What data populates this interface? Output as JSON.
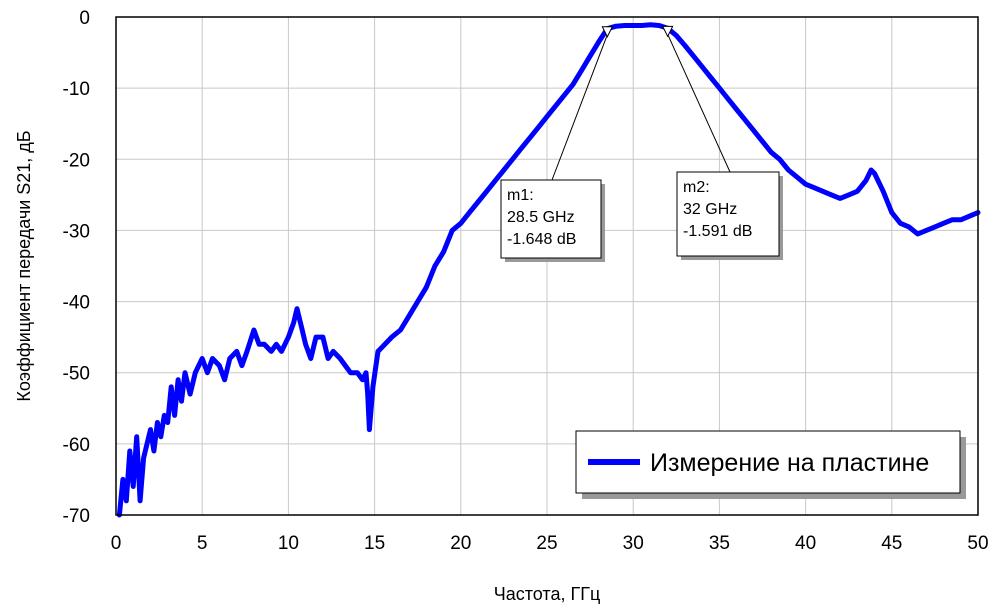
{
  "chart_data": {
    "type": "line",
    "title": "",
    "xlabel": "Частота, ГГц",
    "ylabel": "Коэффициент передачи S21, дБ",
    "xlim": [
      0,
      50
    ],
    "ylim": [
      -70,
      0
    ],
    "xticks": [
      0,
      5,
      10,
      15,
      20,
      25,
      30,
      35,
      40,
      45,
      50
    ],
    "yticks": [
      0,
      -10,
      -20,
      -30,
      -40,
      -50,
      -60,
      -70
    ],
    "grid": true,
    "legend_position": "bottom-right",
    "series": [
      {
        "name": "Измерение на пластине",
        "color": "#0000ff",
        "points": [
          [
            0.2,
            -70
          ],
          [
            0.4,
            -65
          ],
          [
            0.6,
            -68
          ],
          [
            0.8,
            -61
          ],
          [
            1.0,
            -66
          ],
          [
            1.2,
            -59
          ],
          [
            1.4,
            -68
          ],
          [
            1.6,
            -62
          ],
          [
            1.8,
            -60
          ],
          [
            2.0,
            -58
          ],
          [
            2.2,
            -61
          ],
          [
            2.4,
            -57
          ],
          [
            2.6,
            -59
          ],
          [
            2.8,
            -56
          ],
          [
            3.0,
            -57
          ],
          [
            3.2,
            -52
          ],
          [
            3.4,
            -56
          ],
          [
            3.6,
            -51
          ],
          [
            3.8,
            -54
          ],
          [
            4.0,
            -50
          ],
          [
            4.3,
            -53
          ],
          [
            4.6,
            -50
          ],
          [
            5.0,
            -48
          ],
          [
            5.3,
            -50
          ],
          [
            5.6,
            -48
          ],
          [
            6.0,
            -49
          ],
          [
            6.3,
            -51
          ],
          [
            6.6,
            -48
          ],
          [
            7.0,
            -47
          ],
          [
            7.3,
            -49
          ],
          [
            7.6,
            -47
          ],
          [
            8.0,
            -44
          ],
          [
            8.3,
            -46
          ],
          [
            8.6,
            -46
          ],
          [
            9.0,
            -47
          ],
          [
            9.3,
            -46
          ],
          [
            9.6,
            -47
          ],
          [
            10.0,
            -45
          ],
          [
            10.3,
            -43
          ],
          [
            10.5,
            -41
          ],
          [
            10.8,
            -44
          ],
          [
            11.0,
            -46
          ],
          [
            11.3,
            -48
          ],
          [
            11.6,
            -45
          ],
          [
            12.0,
            -45
          ],
          [
            12.3,
            -48
          ],
          [
            12.6,
            -47
          ],
          [
            13.0,
            -48
          ],
          [
            13.3,
            -49
          ],
          [
            13.6,
            -50
          ],
          [
            14.0,
            -50
          ],
          [
            14.3,
            -51
          ],
          [
            14.5,
            -50
          ],
          [
            14.6,
            -53
          ],
          [
            14.7,
            -58
          ],
          [
            14.9,
            -52
          ],
          [
            15.2,
            -47
          ],
          [
            15.6,
            -46
          ],
          [
            16.0,
            -45
          ],
          [
            16.5,
            -44
          ],
          [
            17.0,
            -42
          ],
          [
            17.5,
            -40
          ],
          [
            18.0,
            -38
          ],
          [
            18.5,
            -35
          ],
          [
            19.0,
            -33
          ],
          [
            19.5,
            -30
          ],
          [
            20.0,
            -29
          ],
          [
            20.5,
            -27.5
          ],
          [
            21.0,
            -26
          ],
          [
            21.5,
            -24.5
          ],
          [
            22.0,
            -23
          ],
          [
            22.5,
            -21.5
          ],
          [
            23.0,
            -20
          ],
          [
            23.5,
            -18.5
          ],
          [
            24.0,
            -17
          ],
          [
            24.5,
            -15.5
          ],
          [
            25.0,
            -14
          ],
          [
            25.5,
            -12.5
          ],
          [
            26.0,
            -11
          ],
          [
            26.5,
            -9.5
          ],
          [
            27.0,
            -7.5
          ],
          [
            27.5,
            -5.5
          ],
          [
            28.0,
            -3.5
          ],
          [
            28.5,
            -1.648
          ],
          [
            29.0,
            -1.3
          ],
          [
            29.5,
            -1.2
          ],
          [
            30.0,
            -1.2
          ],
          [
            30.5,
            -1.2
          ],
          [
            31.0,
            -1.1
          ],
          [
            31.5,
            -1.2
          ],
          [
            32.0,
            -1.591
          ],
          [
            32.5,
            -2.6
          ],
          [
            33.0,
            -4.0
          ],
          [
            33.5,
            -5.5
          ],
          [
            34.0,
            -7.0
          ],
          [
            34.5,
            -8.5
          ],
          [
            35.0,
            -10.0
          ],
          [
            35.5,
            -11.5
          ],
          [
            36.0,
            -13.0
          ],
          [
            36.5,
            -14.5
          ],
          [
            37.0,
            -16.0
          ],
          [
            37.5,
            -17.5
          ],
          [
            38.0,
            -19.0
          ],
          [
            38.5,
            -20.0
          ],
          [
            39.0,
            -21.5
          ],
          [
            39.5,
            -22.5
          ],
          [
            40.0,
            -23.5
          ],
          [
            40.5,
            -24.0
          ],
          [
            41.0,
            -24.5
          ],
          [
            41.5,
            -25.0
          ],
          [
            42.0,
            -25.5
          ],
          [
            42.5,
            -25.0
          ],
          [
            43.0,
            -24.5
          ],
          [
            43.5,
            -23.0
          ],
          [
            43.8,
            -21.5
          ],
          [
            44.0,
            -22.0
          ],
          [
            44.5,
            -24.5
          ],
          [
            45.0,
            -27.5
          ],
          [
            45.5,
            -29.0
          ],
          [
            46.0,
            -29.5
          ],
          [
            46.5,
            -30.5
          ],
          [
            47.0,
            -30.0
          ],
          [
            47.5,
            -29.5
          ],
          [
            48.0,
            -29.0
          ],
          [
            48.5,
            -28.5
          ],
          [
            49.0,
            -28.5
          ],
          [
            49.5,
            -28.0
          ],
          [
            50.0,
            -27.5
          ]
        ]
      }
    ],
    "markers": [
      {
        "id": "m1",
        "x": 28.5,
        "y": -1.648,
        "name": "m1:",
        "freq": "28.5 GHz",
        "value": "-1.648 dB"
      },
      {
        "id": "m2",
        "x": 32,
        "y": -1.591,
        "name": "m2:",
        "freq": "32 GHz",
        "value": "-1.591 dB"
      }
    ],
    "legend": {
      "label": "Измерение на пластине"
    }
  }
}
